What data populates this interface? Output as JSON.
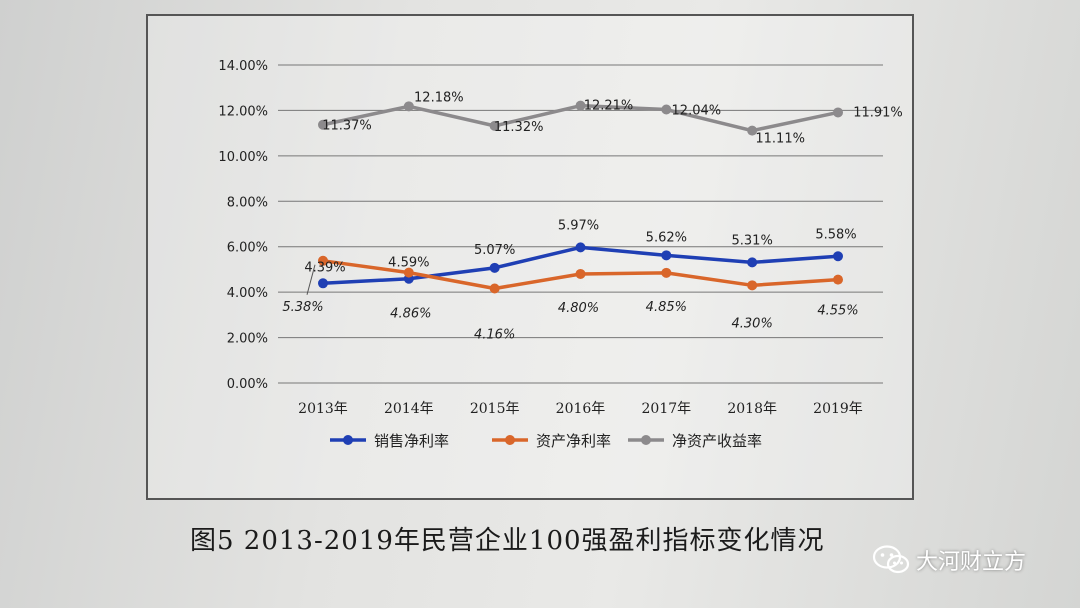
{
  "caption": "图5  2013-2019年民营企业100强盈利指标变化情况",
  "watermark": {
    "text": "大河财立方",
    "icon": "wechat-icon"
  },
  "chart_data": {
    "type": "line",
    "title": "",
    "xlabel": "",
    "ylabel": "",
    "categories": [
      "2013年",
      "2014年",
      "2015年",
      "2016年",
      "2017年",
      "2018年",
      "2019年"
    ],
    "ylim": [
      0,
      14
    ],
    "yticks": [
      "0.00%",
      "2.00%",
      "4.00%",
      "6.00%",
      "8.00%",
      "10.00%",
      "12.00%",
      "14.00%"
    ],
    "grid": true,
    "legend_position": "bottom",
    "series": [
      {
        "name": "销售净利率",
        "color": "#1f3fb4",
        "values": [
          4.39,
          4.59,
          5.07,
          5.97,
          5.62,
          5.31,
          5.58
        ],
        "labels": [
          "4.39%",
          "4.59%",
          "5.07%",
          "5.97%",
          "5.62%",
          "5.31%",
          "5.58%"
        ]
      },
      {
        "name": "资产净利率",
        "color": "#d9662a",
        "values": [
          5.38,
          4.86,
          4.16,
          4.8,
          4.85,
          4.3,
          4.55
        ],
        "labels": [
          "5.38%",
          "4.86%",
          "4.16%",
          "4.80%",
          "4.85%",
          "4.30%",
          "4.55%"
        ]
      },
      {
        "name": "净资产收益率",
        "color": "#8c8a8c",
        "values": [
          11.37,
          12.18,
          11.32,
          12.21,
          12.04,
          11.11,
          11.91
        ],
        "labels": [
          "11.37%",
          "12.18%",
          "11.32%",
          "12.21%",
          "12.04%",
          "11.11%",
          "11.91%"
        ]
      }
    ]
  }
}
